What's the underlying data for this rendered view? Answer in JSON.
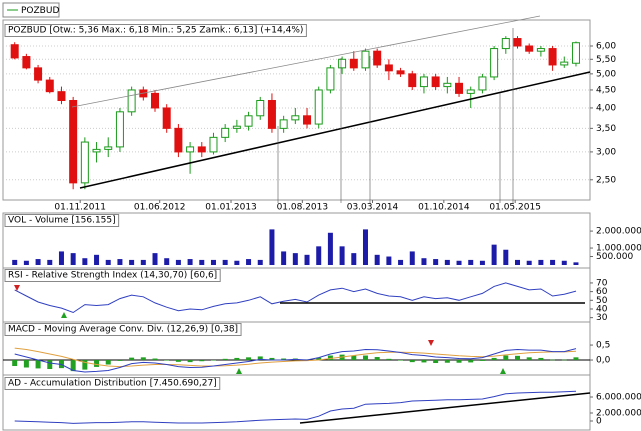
{
  "chart_data": [
    {
      "type": "candlestick",
      "legend": "POZBUD",
      "title": "POZBUD [Otw.: 5,36 Max.: 6,18 Min.: 5,25 Zamk.: 6,13] (+14,4%)",
      "log_scale": true,
      "grid": true,
      "up_color": "#1a9a1a",
      "down_color": "#e01010",
      "xlim": [
        -1,
        49.2
      ],
      "xticks": [
        {
          "value": 5.6,
          "label": "01.11.2011"
        },
        {
          "value": 12.4,
          "label": "01.06.2012"
        },
        {
          "value": 18.5,
          "label": "01.01.2013"
        },
        {
          "value": 24.6,
          "label": "01.08.2013"
        },
        {
          "value": 30.6,
          "label": "03.03.2014"
        },
        {
          "value": 36.7,
          "label": "01.10.2014"
        },
        {
          "value": 42.8,
          "label": "01.05.2015"
        }
      ],
      "ylim": [
        2.19,
        6.75
      ],
      "yticks": [
        {
          "value": 2.5,
          "label": "2,50"
        },
        {
          "value": 3,
          "label": "3,00"
        },
        {
          "value": 3.5,
          "label": "3,50"
        },
        {
          "value": 4,
          "label": "4,00"
        },
        {
          "value": 4.5,
          "label": "4,50"
        },
        {
          "value": 5,
          "label": "5,00"
        },
        {
          "value": 5.5,
          "label": "5,50"
        },
        {
          "value": 6,
          "label": "6,00"
        }
      ],
      "open": [
        6.05,
        5.6,
        5.2,
        4.8,
        4.45,
        4.2,
        2.45,
        3.0,
        3.05,
        3.1,
        3.9,
        4.5,
        4.4,
        4.0,
        3.5,
        3.0,
        3.1,
        3.0,
        3.3,
        3.5,
        3.55,
        3.8,
        4.2,
        3.5,
        3.7,
        3.8,
        3.6,
        4.5,
        5.2,
        5.5,
        5.2,
        5.8,
        5.3,
        5.1,
        5.0,
        4.6,
        4.9,
        4.6,
        4.7,
        4.4,
        4.5,
        4.9,
        5.9,
        6.3,
        6.0,
        5.8,
        5.9,
        5.3,
        5.36
      ],
      "high": [
        6.15,
        5.7,
        5.3,
        4.9,
        4.6,
        4.3,
        3.3,
        3.2,
        3.3,
        4.0,
        4.6,
        4.6,
        4.5,
        4.1,
        3.6,
        3.2,
        3.2,
        3.4,
        3.6,
        3.7,
        3.9,
        4.3,
        4.4,
        3.8,
        4.0,
        4.0,
        4.6,
        5.3,
        5.6,
        5.8,
        5.9,
        5.9,
        5.5,
        5.2,
        5.1,
        5.0,
        5.0,
        4.9,
        4.9,
        4.6,
        5.0,
        6.0,
        6.4,
        6.4,
        6.1,
        6.0,
        6.0,
        5.6,
        6.18
      ],
      "low": [
        5.5,
        5.15,
        4.7,
        4.4,
        4.1,
        2.35,
        2.35,
        2.8,
        2.9,
        3.0,
        3.8,
        4.2,
        3.9,
        3.4,
        2.9,
        2.6,
        2.9,
        2.95,
        3.2,
        3.4,
        3.45,
        3.7,
        3.4,
        3.4,
        3.6,
        3.5,
        3.5,
        4.4,
        5.0,
        5.1,
        5.1,
        5.2,
        4.8,
        4.9,
        4.5,
        4.4,
        4.5,
        4.4,
        4.3,
        4.0,
        4.4,
        4.8,
        5.7,
        5.9,
        5.7,
        5.6,
        5.1,
        5.2,
        5.25
      ],
      "close": [
        5.55,
        5.2,
        4.8,
        4.45,
        4.2,
        2.45,
        3.2,
        3.05,
        3.1,
        3.9,
        4.5,
        4.3,
        4.0,
        3.5,
        3.0,
        3.1,
        3.0,
        3.3,
        3.5,
        3.55,
        3.8,
        4.2,
        3.5,
        3.7,
        3.8,
        3.6,
        4.5,
        5.2,
        5.5,
        5.2,
        5.8,
        5.3,
        5.1,
        5.0,
        4.6,
        4.9,
        4.6,
        4.7,
        4.4,
        4.5,
        4.9,
        5.9,
        6.3,
        6.0,
        5.8,
        5.9,
        5.3,
        5.4,
        6.13
      ]
    },
    {
      "type": "bar",
      "title": "VOL - Volume [156.155]",
      "color": "#1c1ca8",
      "xlim": [
        -1,
        49.2
      ],
      "ylim": [
        0,
        2300000
      ],
      "yticks": [
        {
          "value": 500000,
          "label": "500.000"
        },
        {
          "value": 1000000,
          "label": "1.000.000"
        },
        {
          "value": 2000000,
          "label": "2.000.000"
        }
      ],
      "values": [
        300000,
        250000,
        350000,
        300000,
        800000,
        700000,
        400000,
        600000,
        300000,
        350000,
        300000,
        300000,
        700000,
        400000,
        300000,
        350000,
        300000,
        300000,
        300000,
        250000,
        350000,
        300000,
        2100000,
        800000,
        700000,
        600000,
        1100000,
        1900000,
        1100000,
        700000,
        2100000,
        600000,
        500000,
        300000,
        800000,
        400000,
        350000,
        300000,
        250000,
        300000,
        250000,
        1200000,
        900000,
        300000,
        250000,
        300000,
        300000,
        250000,
        156155
      ]
    },
    {
      "type": "line",
      "title": "RSI - Relative Strength Index (14,30,70) [60,6]",
      "xlim": [
        -1,
        49.2
      ],
      "ylim": [
        25,
        78
      ],
      "yticks": [
        30,
        40,
        50,
        60,
        70
      ],
      "series": [
        {
          "color": "#3040c0",
          "values": [
            62,
            55,
            48,
            44,
            41,
            36,
            45,
            44,
            45,
            52,
            56,
            54,
            47,
            42,
            38,
            40,
            39,
            43,
            46,
            47,
            50,
            54,
            46,
            49,
            51,
            48,
            56,
            62,
            64,
            60,
            63,
            58,
            55,
            54,
            50,
            54,
            52,
            53,
            50,
            54,
            58,
            66,
            70,
            66,
            62,
            63,
            55,
            57,
            60.6
          ]
        }
      ]
    },
    {
      "type": "combo",
      "title": "MACD - Moving Average Conv. Div. (12,26,9) [0,38]",
      "xlim": [
        -1,
        49.2
      ],
      "ylim": [
        -0.5,
        1.27
      ],
      "yticks": [
        {
          "value": 0,
          "label": "0,0"
        },
        {
          "value": 0.5,
          "label": "0,5"
        }
      ],
      "series": [
        {
          "type": "bar",
          "color": "#22a022",
          "values": [
            -0.2,
            -0.25,
            -0.28,
            -0.3,
            -0.27,
            -0.37,
            -0.32,
            -0.23,
            -0.15,
            -0.03,
            0.08,
            0.09,
            0.05,
            0,
            -0.06,
            -0.07,
            -0.04,
            0,
            0.04,
            0.07,
            0.09,
            0.12,
            0.07,
            0.05,
            0.05,
            0.02,
            0.08,
            0.15,
            0.18,
            0.15,
            0.15,
            0.1,
            0.04,
            -0.01,
            -0.07,
            -0.08,
            -0.1,
            -0.09,
            -0.09,
            -0.08,
            -0.03,
            0.07,
            0.15,
            0.14,
            0.09,
            0.07,
            0.01,
            0.01,
            0.09
          ]
        },
        {
          "type": "line",
          "color": "#e0a040",
          "values": [
            0.4,
            0.35,
            0.28,
            0.2,
            0.12,
            0.02,
            -0.08,
            -0.15,
            -0.2,
            -0.22,
            -0.2,
            -0.17,
            -0.15,
            -0.15,
            -0.16,
            -0.18,
            -0.2,
            -0.2,
            -0.19,
            -0.17,
            -0.14,
            -0.1,
            -0.07,
            -0.05,
            -0.03,
            -0.02,
            0,
            0.05,
            0.1,
            0.15,
            0.2,
            0.24,
            0.26,
            0.26,
            0.25,
            0.23,
            0.2,
            0.17,
            0.14,
            0.12,
            0.11,
            0.13,
            0.17,
            0.21,
            0.24,
            0.26,
            0.27,
            0.27,
            0.29
          ]
        },
        {
          "type": "line",
          "color": "#3040c0",
          "values": [
            0.2,
            0.1,
            0,
            -0.1,
            -0.15,
            -0.35,
            -0.4,
            -0.38,
            -0.35,
            -0.25,
            -0.12,
            -0.08,
            -0.1,
            -0.15,
            -0.22,
            -0.25,
            -0.24,
            -0.2,
            -0.15,
            -0.1,
            -0.05,
            0.02,
            0,
            0,
            0.02,
            0,
            0.08,
            0.2,
            0.28,
            0.3,
            0.35,
            0.34,
            0.3,
            0.25,
            0.18,
            0.15,
            0.1,
            0.08,
            0.05,
            0.04,
            0.08,
            0.2,
            0.32,
            0.35,
            0.33,
            0.33,
            0.28,
            0.28,
            0.38
          ]
        }
      ]
    },
    {
      "type": "line",
      "title": "AD - Accumulation Distribution [7.450.690,27]",
      "xlim": [
        -1,
        49.2
      ],
      "ylim": [
        -2500000,
        11500000
      ],
      "yticks": [
        0,
        {
          "value": 2000000,
          "label": "2.000.000"
        },
        {
          "value": 6000000,
          "label": "6.000.000"
        }
      ],
      "series": [
        {
          "color": "#3040c0",
          "values": [
            0,
            -100000,
            -200000,
            -300000,
            -400000,
            -600000,
            -500000,
            -400000,
            -400000,
            -300000,
            -200000,
            -200000,
            -300000,
            -400000,
            -500000,
            -500000,
            -500000,
            -400000,
            -300000,
            -200000,
            0,
            200000,
            300000,
            400000,
            500000,
            400000,
            1200000,
            2500000,
            3000000,
            3200000,
            4200000,
            4300000,
            4400000,
            4600000,
            5000000,
            5100000,
            5200000,
            5300000,
            5300000,
            5400000,
            5500000,
            6100000,
            6800000,
            7000000,
            7100000,
            7200000,
            7200000,
            7300000,
            7450690.27
          ]
        }
      ]
    }
  ]
}
